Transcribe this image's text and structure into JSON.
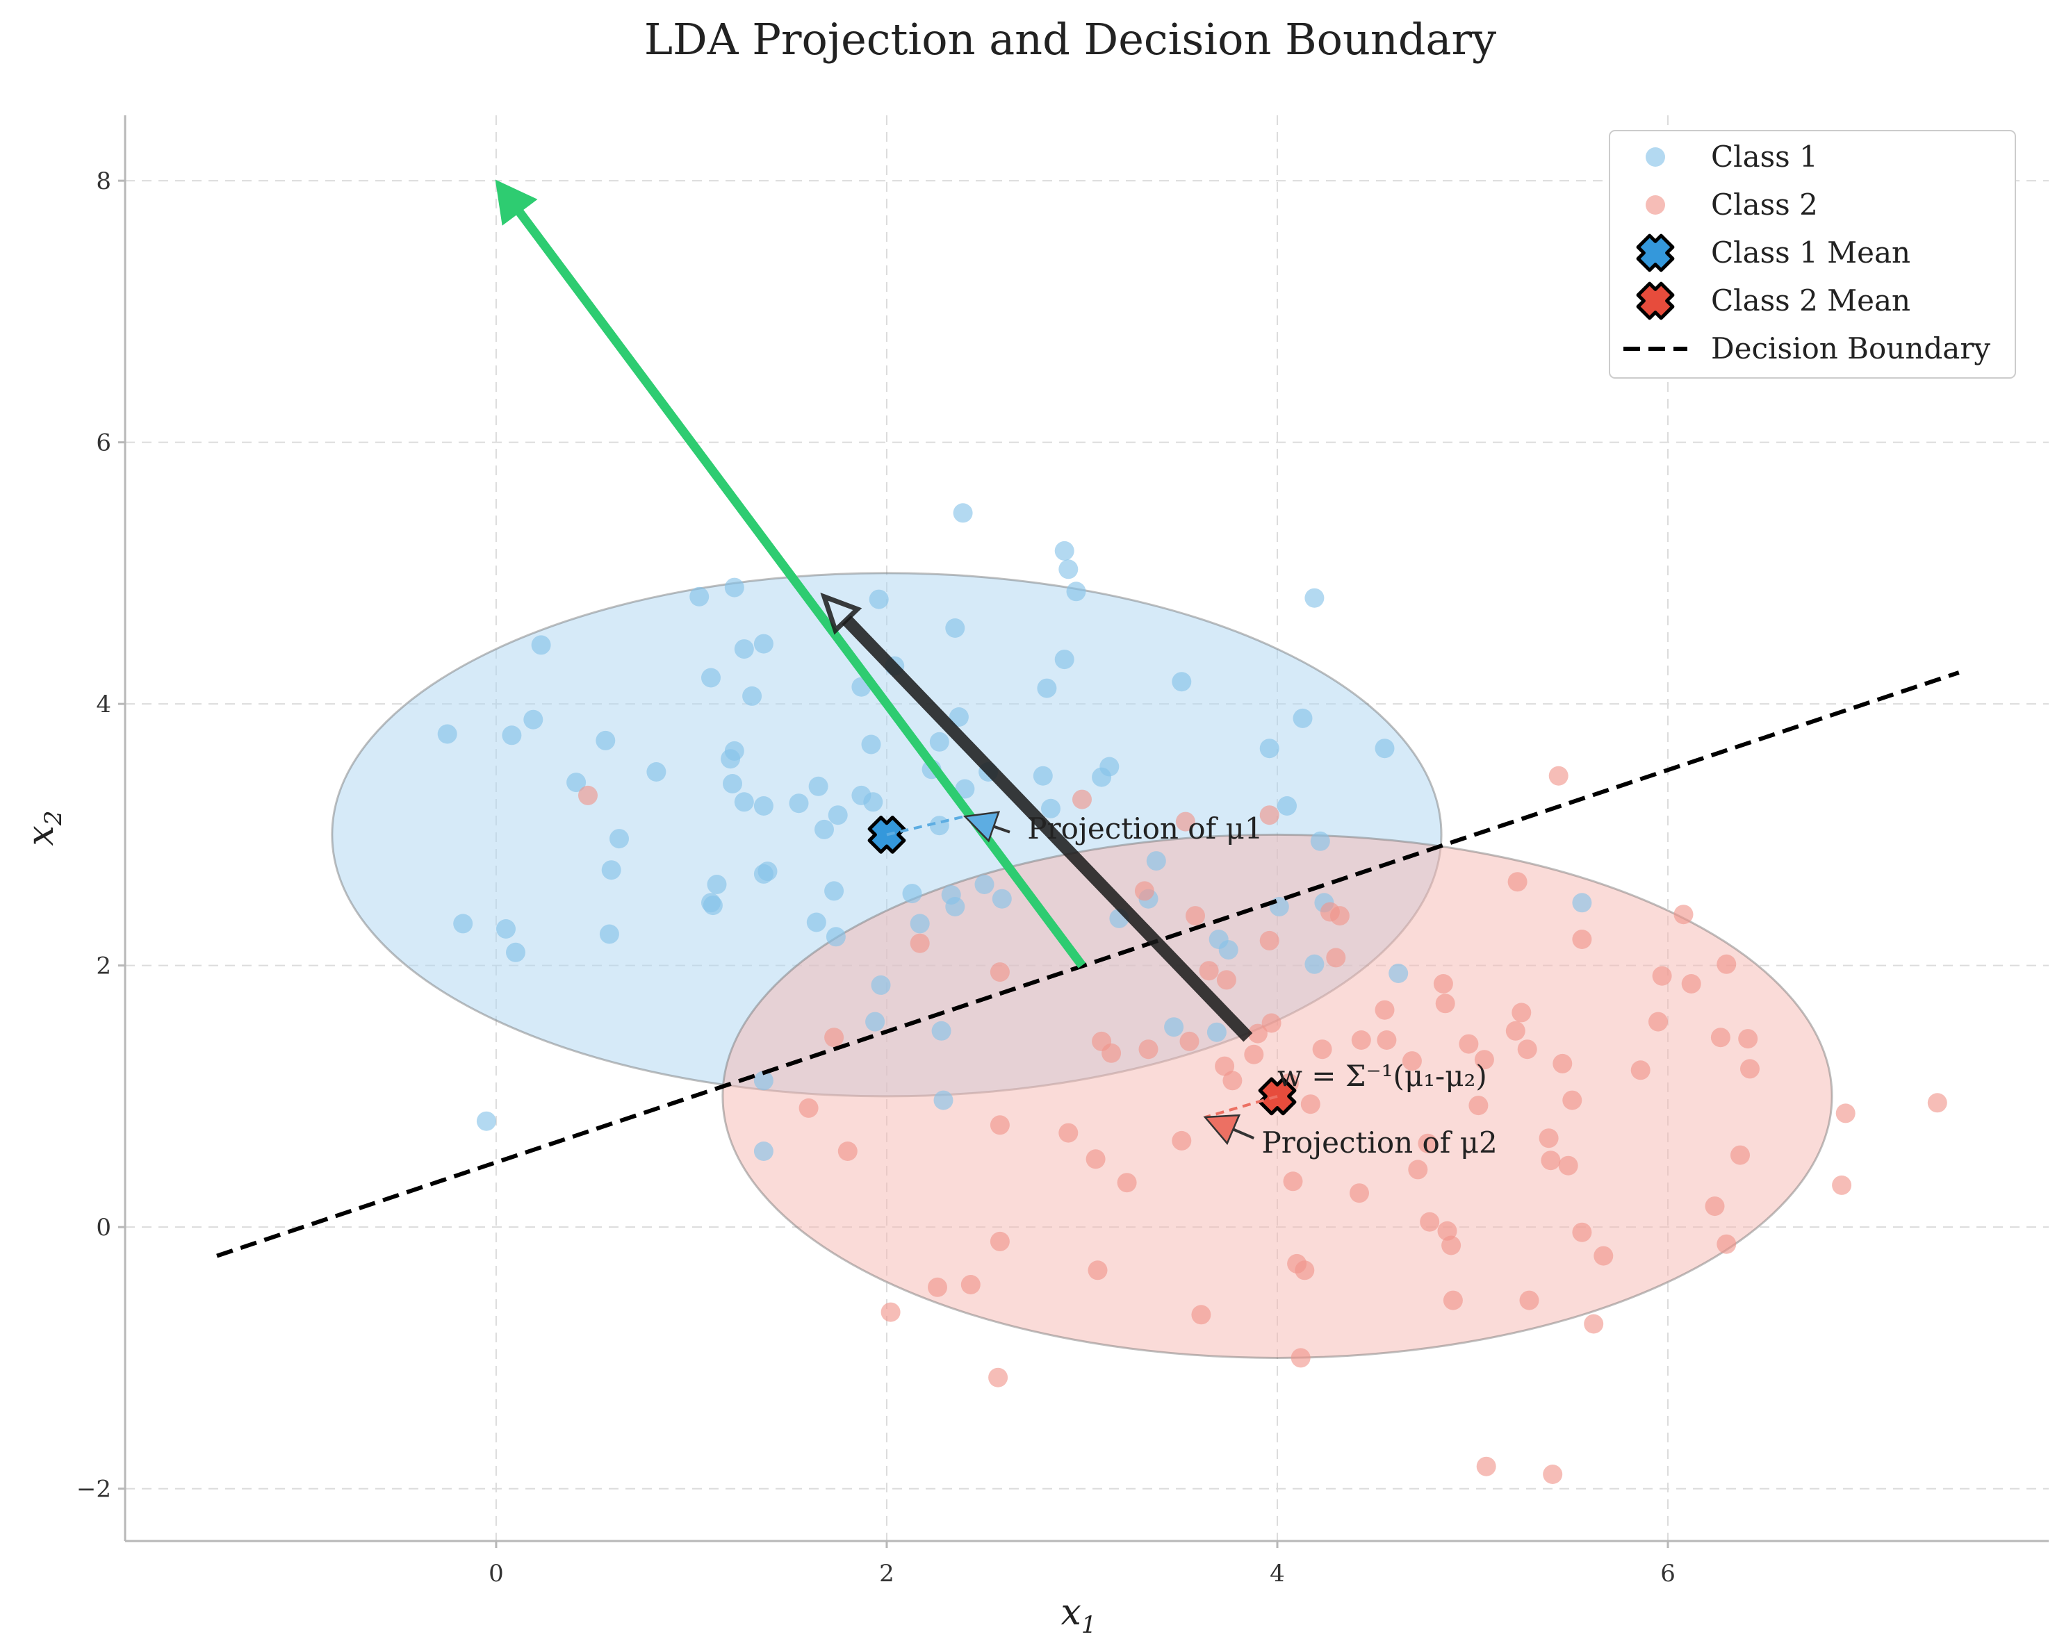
{
  "chart_data": {
    "type": "scatter",
    "title": "LDA Projection and Decision Boundary",
    "xlabel": "x",
    "xlabel_sub": "1",
    "ylabel": "x",
    "ylabel_sub": "2",
    "xlim": [
      -1.9,
      7.95
    ],
    "ylim": [
      -2.4,
      8.5
    ],
    "xticks": [
      0,
      2,
      4,
      6
    ],
    "yticks": [
      -2,
      0,
      2,
      4,
      6,
      8
    ],
    "xtick_labels": [
      "0",
      "2",
      "4",
      "6"
    ],
    "ytick_labels": [
      "−2",
      "0",
      "2",
      "4",
      "6",
      "8"
    ],
    "grid": true,
    "legend_position": "top-right",
    "legend": [
      {
        "label": "Class 1",
        "kind": "point",
        "color": "#85c1e9"
      },
      {
        "label": "Class 2",
        "kind": "point",
        "color": "#f1948a"
      },
      {
        "label": "Class 1 Mean",
        "kind": "mean",
        "color": "#3498db"
      },
      {
        "label": "Class 2 Mean",
        "kind": "mean",
        "color": "#e74c3c"
      },
      {
        "label": "Decision Boundary",
        "kind": "dashed-line",
        "color": "#000000"
      }
    ],
    "series": [
      {
        "name": "Class 1",
        "color": "#85c1e9",
        "points": [
          [
            -0.25,
            3.77
          ],
          [
            0.08,
            3.76
          ],
          [
            0.19,
            3.88
          ],
          [
            0.23,
            4.45
          ],
          [
            0.41,
            3.4
          ],
          [
            0.56,
            3.72
          ],
          [
            0.63,
            2.97
          ],
          [
            0.59,
            2.73
          ],
          [
            0.58,
            2.24
          ],
          [
            0.82,
            3.48
          ],
          [
            -0.17,
            2.32
          ],
          [
            0.05,
            2.28
          ],
          [
            0.1,
            2.1
          ],
          [
            -0.05,
            0.81
          ],
          [
            1.04,
            4.82
          ],
          [
            1.22,
            4.89
          ],
          [
            1.1,
            4.2
          ],
          [
            1.27,
            4.42
          ],
          [
            1.37,
            4.46
          ],
          [
            1.31,
            4.06
          ],
          [
            1.2,
            3.58
          ],
          [
            1.22,
            3.64
          ],
          [
            1.21,
            3.39
          ],
          [
            1.27,
            3.25
          ],
          [
            1.37,
            3.22
          ],
          [
            1.55,
            3.24
          ],
          [
            1.65,
            3.37
          ],
          [
            1.68,
            3.04
          ],
          [
            1.75,
            3.15
          ],
          [
            1.87,
            3.3
          ],
          [
            1.93,
            3.25
          ],
          [
            1.87,
            4.13
          ],
          [
            1.96,
            4.8
          ],
          [
            2.04,
            4.29
          ],
          [
            1.92,
            3.69
          ],
          [
            1.73,
            2.57
          ],
          [
            1.74,
            2.22
          ],
          [
            1.64,
            2.33
          ],
          [
            2.13,
            2.55
          ],
          [
            2.17,
            2.32
          ],
          [
            1.39,
            2.72
          ],
          [
            1.37,
            2.7
          ],
          [
            1.13,
            2.62
          ],
          [
            1.1,
            2.48
          ],
          [
            1.11,
            2.46
          ],
          [
            1.97,
            1.85
          ],
          [
            1.94,
            1.57
          ],
          [
            2.23,
            3.5
          ],
          [
            2.27,
            3.07
          ],
          [
            2.27,
            3.71
          ],
          [
            2.37,
            3.9
          ],
          [
            2.35,
            4.58
          ],
          [
            2.39,
            5.46
          ],
          [
            2.4,
            3.35
          ],
          [
            2.5,
            2.62
          ],
          [
            2.52,
            3.48
          ],
          [
            2.59,
            2.51
          ],
          [
            2.33,
            2.54
          ],
          [
            2.35,
            2.45
          ],
          [
            2.28,
            1.5
          ],
          [
            2.29,
            0.97
          ],
          [
            2.8,
            3.45
          ],
          [
            2.82,
            4.12
          ],
          [
            2.84,
            3.2
          ],
          [
            2.91,
            4.34
          ],
          [
            2.91,
            5.17
          ],
          [
            2.93,
            5.03
          ],
          [
            2.97,
            4.86
          ],
          [
            3.1,
            3.44
          ],
          [
            3.14,
            3.52
          ],
          [
            3.19,
            2.36
          ],
          [
            3.34,
            2.51
          ],
          [
            3.38,
            2.8
          ],
          [
            3.51,
            4.17
          ],
          [
            3.47,
            1.53
          ],
          [
            3.69,
            1.49
          ],
          [
            3.7,
            2.2
          ],
          [
            3.75,
            2.12
          ],
          [
            3.96,
            3.66
          ],
          [
            4.01,
            2.45
          ],
          [
            4.05,
            3.22
          ],
          [
            4.13,
            3.89
          ],
          [
            4.19,
            4.81
          ],
          [
            4.19,
            2.01
          ],
          [
            4.22,
            2.95
          ],
          [
            4.24,
            2.48
          ],
          [
            4.55,
            3.66
          ],
          [
            4.62,
            1.94
          ],
          [
            5.56,
            2.48
          ],
          [
            1.37,
            1.12
          ],
          [
            1.37,
            0.58
          ]
        ]
      },
      {
        "name": "Class 2",
        "color": "#f1948a",
        "points": [
          [
            0.47,
            3.3
          ],
          [
            1.6,
            0.91
          ],
          [
            1.8,
            0.58
          ],
          [
            1.73,
            1.45
          ],
          [
            2.02,
            -0.65
          ],
          [
            2.17,
            2.17
          ],
          [
            2.26,
            -0.46
          ],
          [
            2.43,
            -0.44
          ],
          [
            2.58,
            -0.11
          ],
          [
            2.58,
            0.78
          ],
          [
            2.58,
            1.95
          ],
          [
            2.57,
            -1.15
          ],
          [
            2.93,
            0.72
          ],
          [
            3.0,
            3.27
          ],
          [
            3.07,
            0.52
          ],
          [
            3.1,
            1.42
          ],
          [
            3.15,
            1.33
          ],
          [
            3.08,
            -0.33
          ],
          [
            3.23,
            0.34
          ],
          [
            3.32,
            2.57
          ],
          [
            3.34,
            1.36
          ],
          [
            3.51,
            0.66
          ],
          [
            3.55,
            1.42
          ],
          [
            3.58,
            2.38
          ],
          [
            3.53,
            3.1
          ],
          [
            3.61,
            -0.67
          ],
          [
            3.65,
            1.96
          ],
          [
            3.73,
            1.23
          ],
          [
            3.74,
            1.89
          ],
          [
            3.77,
            1.12
          ],
          [
            3.88,
            1.32
          ],
          [
            3.9,
            1.48
          ],
          [
            3.96,
            3.15
          ],
          [
            3.96,
            2.19
          ],
          [
            3.97,
            1.56
          ],
          [
            4.06,
            1.1
          ],
          [
            4.08,
            0.35
          ],
          [
            4.1,
            -0.28
          ],
          [
            4.12,
            -1.0
          ],
          [
            4.14,
            -0.33
          ],
          [
            4.17,
            0.94
          ],
          [
            4.23,
            1.36
          ],
          [
            4.27,
            2.41
          ],
          [
            4.3,
            2.06
          ],
          [
            4.32,
            2.38
          ],
          [
            4.43,
            1.43
          ],
          [
            4.42,
            0.26
          ],
          [
            4.55,
            1.66
          ],
          [
            4.56,
            1.43
          ],
          [
            4.69,
            1.27
          ],
          [
            4.72,
            0.44
          ],
          [
            4.77,
            0.64
          ],
          [
            4.78,
            0.04
          ],
          [
            4.85,
            1.86
          ],
          [
            4.86,
            1.71
          ],
          [
            4.87,
            -0.03
          ],
          [
            4.89,
            -0.14
          ],
          [
            4.9,
            -0.56
          ],
          [
            4.98,
            1.4
          ],
          [
            5.03,
            0.93
          ],
          [
            5.06,
            1.28
          ],
          [
            5.07,
            -1.83
          ],
          [
            5.23,
            2.64
          ],
          [
            5.22,
            1.5
          ],
          [
            5.25,
            1.64
          ],
          [
            5.29,
            -0.56
          ],
          [
            5.28,
            1.36
          ],
          [
            5.39,
            0.68
          ],
          [
            5.4,
            0.51
          ],
          [
            5.41,
            -1.89
          ],
          [
            5.44,
            3.45
          ],
          [
            5.46,
            1.25
          ],
          [
            5.49,
            0.47
          ],
          [
            5.51,
            0.97
          ],
          [
            5.56,
            2.2
          ],
          [
            5.56,
            -0.04
          ],
          [
            5.62,
            -0.74
          ],
          [
            5.67,
            -0.22
          ],
          [
            5.86,
            1.2
          ],
          [
            5.95,
            1.57
          ],
          [
            5.97,
            1.92
          ],
          [
            6.08,
            2.39
          ],
          [
            6.12,
            1.86
          ],
          [
            6.24,
            0.16
          ],
          [
            6.27,
            1.45
          ],
          [
            6.3,
            -0.13
          ],
          [
            6.3,
            2.01
          ],
          [
            6.37,
            0.55
          ],
          [
            6.41,
            1.44
          ],
          [
            6.42,
            1.21
          ],
          [
            6.89,
            0.32
          ],
          [
            6.91,
            0.87
          ],
          [
            7.38,
            0.95
          ]
        ]
      }
    ],
    "means": [
      {
        "name": "Class 1 Mean",
        "x": 2.0,
        "y": 3.0,
        "color": "#3498db"
      },
      {
        "name": "Class 2 Mean",
        "x": 4.0,
        "y": 1.0,
        "color": "#e74c3c"
      }
    ],
    "ellipses": [
      {
        "cx": 2.0,
        "cy": 3.0,
        "rx": 2.84,
        "ry": 2.0,
        "fill": "#aed6f1",
        "opacity": 0.5
      },
      {
        "cx": 4.0,
        "cy": 1.0,
        "rx": 2.84,
        "ry": 2.0,
        "fill": "#f5b7b1",
        "opacity": 0.5
      }
    ],
    "decision_boundary": {
      "x": [
        -1.43,
        7.49
      ],
      "y": [
        -0.22,
        4.24
      ],
      "color": "#000000"
    },
    "vectors": [
      {
        "from": [
          3.0,
          2.0
        ],
        "to": [
          0.0,
          8.0
        ],
        "color": "#2ecc71"
      },
      {
        "from": [
          3.85,
          1.45
        ],
        "to": [
          1.68,
          4.82
        ],
        "color": "#1a1a1a"
      }
    ],
    "annotations": [
      {
        "text": "Projection of μ1",
        "text_x": 2.72,
        "text_y": 2.97,
        "arrow_from": [
          2.63,
          3.02
        ],
        "arrow_to": [
          2.4,
          3.14
        ],
        "color": "#5dade2"
      },
      {
        "text": "Projection of μ2",
        "text_x": 3.92,
        "text_y": 0.57,
        "arrow_from": [
          3.88,
          0.68
        ],
        "arrow_to": [
          3.63,
          0.84
        ],
        "color": "#ec7063"
      },
      {
        "text": "w = Σ⁻¹(μ₁-μ₂)",
        "text_x": 4.0,
        "text_y": 1.08,
        "arrow_from": null,
        "arrow_to": null,
        "color": "#222222"
      }
    ]
  }
}
